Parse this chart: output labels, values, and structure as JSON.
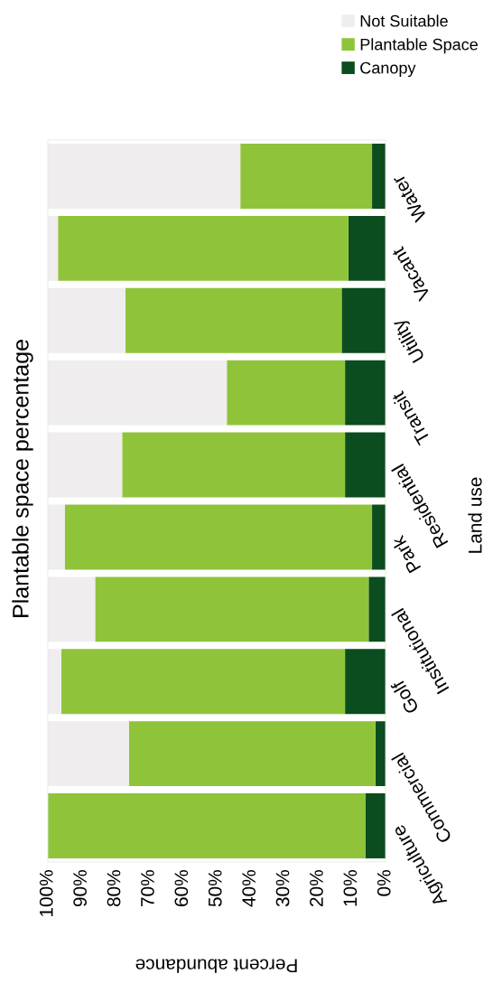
{
  "chart_data": {
    "type": "bar",
    "orientation": "horizontal",
    "stacked": true,
    "title": "Plantable space percentage",
    "xlabel": "Percent abundance",
    "ylabel": "Land use",
    "categories": [
      "Water",
      "Vacant",
      "Utility",
      "Transit",
      "Residential",
      "Park",
      "Institutional",
      "Golf",
      "Commercial",
      "Agriculture"
    ],
    "series": [
      {
        "name": "Canopy",
        "color": "#0b4d1e",
        "values": [
          4,
          11,
          13,
          12,
          12,
          4,
          5,
          12,
          3,
          6
        ]
      },
      {
        "name": "Plantable Space",
        "color": "#8fc43a",
        "values": [
          39,
          86,
          64,
          35,
          66,
          91,
          81,
          84,
          73,
          94
        ]
      },
      {
        "name": "Not Suitable",
        "color": "#efedee",
        "values": [
          57,
          3,
          23,
          53,
          22,
          5,
          14,
          4,
          24,
          0
        ]
      }
    ],
    "xlim": [
      100,
      0
    ],
    "xticks": [
      {
        "value": 100,
        "label": "100%"
      },
      {
        "value": 90,
        "label": "90%"
      },
      {
        "value": 80,
        "label": "80%"
      },
      {
        "value": 70,
        "label": "70%"
      },
      {
        "value": 60,
        "label": "60%"
      },
      {
        "value": 50,
        "label": "50%"
      },
      {
        "value": 40,
        "label": "40%"
      },
      {
        "value": 30,
        "label": "30%"
      },
      {
        "value": 20,
        "label": "20%"
      },
      {
        "value": 10,
        "label": "10%"
      },
      {
        "value": 0,
        "label": "0%"
      }
    ],
    "legend": "top right"
  }
}
